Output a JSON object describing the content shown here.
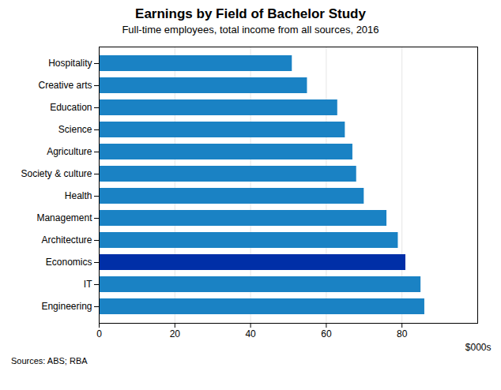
{
  "chart_data": {
    "type": "bar",
    "orientation": "horizontal",
    "title": "Earnings by Field of Bachelor Study",
    "subtitle": "Full-time employees, total income from all sources, 2016",
    "source": "Sources:   ABS; RBA",
    "xlabel": "$000s",
    "categories": [
      "Engineering",
      "IT",
      "Economics",
      "Architecture",
      "Management",
      "Health",
      "Society & culture",
      "Agriculture",
      "Science",
      "Education",
      "Creative arts",
      "Hospitality"
    ],
    "values": [
      86,
      85,
      81,
      79,
      76,
      70,
      68,
      67,
      65,
      63,
      55,
      51
    ],
    "colors": [
      "#1a82c4",
      "#1a82c4",
      "#002fa7",
      "#1a82c4",
      "#1a82c4",
      "#1a82c4",
      "#1a82c4",
      "#1a82c4",
      "#1a82c4",
      "#1a82c4",
      "#1a82c4",
      "#1a82c4"
    ],
    "xlim": [
      0,
      100
    ],
    "xticks": [
      0,
      20,
      40,
      60,
      80
    ],
    "grid": true
  }
}
